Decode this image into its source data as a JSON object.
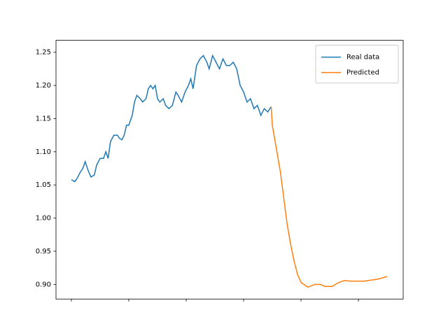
{
  "chart_data": {
    "type": "line",
    "xlim": [
      -13.4,
      289
    ],
    "xticks": [
      0,
      50,
      100,
      150,
      200,
      250
    ],
    "ylim": [
      0.878,
      1.268
    ],
    "yticks": [
      0.9,
      0.95,
      1.0,
      1.05,
      1.1,
      1.15,
      1.2,
      1.25
    ],
    "legend": "upper right",
    "series": [
      {
        "name": "Real data",
        "color": "#1f77b4",
        "x": [
          0,
          3,
          5,
          8,
          10,
          12,
          15,
          17,
          20,
          22,
          25,
          28,
          30,
          32,
          34,
          37,
          40,
          42,
          44,
          46,
          48,
          50,
          53,
          55,
          57,
          60,
          62,
          65,
          67,
          69,
          71,
          73,
          75,
          77,
          80,
          82,
          85,
          88,
          91,
          93,
          96,
          99,
          102,
          104,
          106,
          109,
          112,
          115,
          118,
          120,
          123,
          126,
          129,
          132,
          135,
          138,
          141,
          144,
          147,
          150,
          153,
          156,
          159,
          162,
          165,
          168,
          171,
          174
        ],
        "values": [
          1.058,
          1.055,
          1.06,
          1.07,
          1.075,
          1.085,
          1.07,
          1.062,
          1.065,
          1.08,
          1.09,
          1.09,
          1.1,
          1.09,
          1.115,
          1.125,
          1.125,
          1.12,
          1.118,
          1.125,
          1.14,
          1.14,
          1.155,
          1.175,
          1.185,
          1.18,
          1.175,
          1.18,
          1.195,
          1.2,
          1.195,
          1.2,
          1.18,
          1.175,
          1.18,
          1.17,
          1.165,
          1.17,
          1.19,
          1.185,
          1.175,
          1.19,
          1.2,
          1.21,
          1.195,
          1.23,
          1.24,
          1.245,
          1.235,
          1.225,
          1.245,
          1.235,
          1.225,
          1.24,
          1.23,
          1.23,
          1.235,
          1.225,
          1.2,
          1.19,
          1.175,
          1.18,
          1.165,
          1.17,
          1.155,
          1.165,
          1.16,
          1.168
        ]
      },
      {
        "name": "Predicted",
        "color": "#ff7f0e",
        "x": [
          174,
          175,
          179,
          182,
          185,
          188,
          191,
          194,
          197,
          200,
          206,
          212,
          217,
          221,
          227,
          233,
          238,
          243,
          255,
          267,
          275
        ],
        "values": [
          1.168,
          1.14,
          1.1,
          1.07,
          1.03,
          0.99,
          0.96,
          0.935,
          0.915,
          0.903,
          0.896,
          0.9,
          0.9,
          0.897,
          0.897,
          0.903,
          0.906,
          0.905,
          0.905,
          0.908,
          0.912
        ]
      }
    ]
  }
}
